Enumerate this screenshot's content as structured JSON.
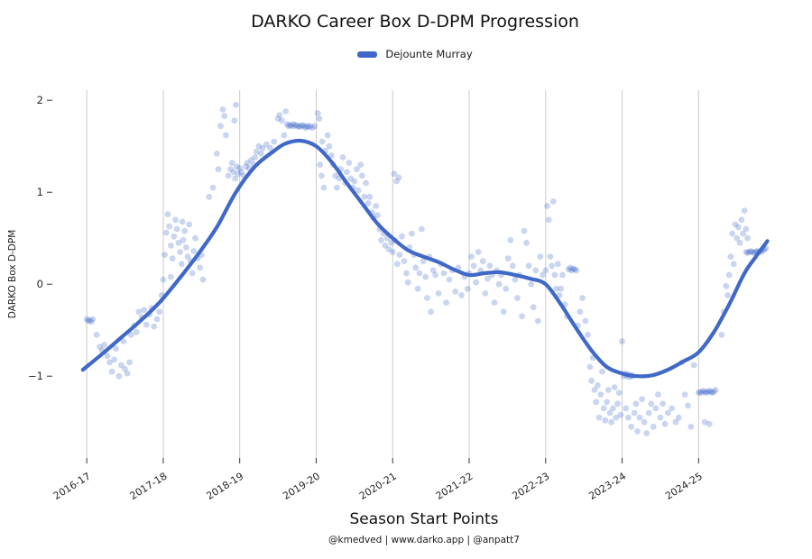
{
  "footer": {
    "credits": "@kmedved | www.darko.app | @anpatt7"
  },
  "chart_data": {
    "type": "scatter",
    "title": "DARKO Career Box D-DPM Progression",
    "xlabel": "Season Start Points",
    "ylabel": "DARKO Box D-DPM",
    "legend_entries": [
      {
        "name": "Dejounte Murray",
        "color": "#4068c8"
      }
    ],
    "legend_position": "top-center",
    "grid": "vertical-only",
    "x_unit": "seasons since 2016-17 season start (gridline index = tick index)",
    "x_ticks": [
      "2016-17",
      "2017-18",
      "2018-19",
      "2019-20",
      "2020-21",
      "2021-22",
      "2022-23",
      "2023-24",
      "2024-25"
    ],
    "y_ticks": [
      {
        "value": 2,
        "label": "2"
      },
      {
        "value": 1,
        "label": "1"
      },
      {
        "value": 0,
        "label": "0"
      },
      {
        "value": -1,
        "label": "−1"
      }
    ],
    "xlim": [
      -0.45,
      9.4
    ],
    "ylim": [
      -1.89,
      2.11
    ],
    "colors": {
      "line": "#4068c8",
      "point": "#4068c8",
      "point_opacity": 0.28,
      "grid": "#c9c9c9",
      "tick": "#333333"
    },
    "trend": [
      [
        -0.05,
        -0.93
      ],
      [
        0.2,
        -0.76
      ],
      [
        0.45,
        -0.58
      ],
      [
        0.7,
        -0.4
      ],
      [
        0.95,
        -0.2
      ],
      [
        1.2,
        0.05
      ],
      [
        1.45,
        0.32
      ],
      [
        1.7,
        0.62
      ],
      [
        1.95,
        1.0
      ],
      [
        2.2,
        1.28
      ],
      [
        2.45,
        1.45
      ],
      [
        2.6,
        1.53
      ],
      [
        2.8,
        1.56
      ],
      [
        3.0,
        1.5
      ],
      [
        3.2,
        1.33
      ],
      [
        3.4,
        1.1
      ],
      [
        3.6,
        0.88
      ],
      [
        3.8,
        0.66
      ],
      [
        4.0,
        0.5
      ],
      [
        4.2,
        0.37
      ],
      [
        4.4,
        0.3
      ],
      [
        4.6,
        0.24
      ],
      [
        4.8,
        0.16
      ],
      [
        5.0,
        0.1
      ],
      [
        5.2,
        0.12
      ],
      [
        5.4,
        0.13
      ],
      [
        5.6,
        0.1
      ],
      [
        5.8,
        0.06
      ],
      [
        6.0,
        0.0
      ],
      [
        6.2,
        -0.22
      ],
      [
        6.4,
        -0.48
      ],
      [
        6.6,
        -0.72
      ],
      [
        6.8,
        -0.9
      ],
      [
        7.0,
        -0.97
      ],
      [
        7.2,
        -1.0
      ],
      [
        7.4,
        -0.99
      ],
      [
        7.6,
        -0.93
      ],
      [
        7.8,
        -0.84
      ],
      [
        8.0,
        -0.74
      ],
      [
        8.2,
        -0.52
      ],
      [
        8.4,
        -0.22
      ],
      [
        8.6,
        0.12
      ],
      [
        8.75,
        0.3
      ],
      [
        8.9,
        0.47
      ]
    ],
    "points": [
      [
        0.0,
        -0.38
      ],
      [
        0.02,
        -0.4
      ],
      [
        0.04,
        -0.39
      ],
      [
        0.06,
        -0.41
      ],
      [
        0.08,
        -0.38
      ],
      [
        0.13,
        -0.55
      ],
      [
        0.17,
        -0.68
      ],
      [
        0.2,
        -0.72
      ],
      [
        0.23,
        -0.66
      ],
      [
        0.27,
        -0.78
      ],
      [
        0.3,
        -0.85
      ],
      [
        0.33,
        -0.95
      ],
      [
        0.36,
        -0.82
      ],
      [
        0.38,
        -0.7
      ],
      [
        0.42,
        -1.0
      ],
      [
        0.45,
        -0.88
      ],
      [
        0.48,
        -0.62
      ],
      [
        0.5,
        -0.92
      ],
      [
        0.53,
        -0.97
      ],
      [
        0.56,
        -0.85
      ],
      [
        0.58,
        -0.55
      ],
      [
        0.62,
        -0.45
      ],
      [
        0.65,
        -0.52
      ],
      [
        0.68,
        -0.3
      ],
      [
        0.72,
        -0.36
      ],
      [
        0.75,
        -0.28
      ],
      [
        0.78,
        -0.44
      ],
      [
        0.82,
        -0.33
      ],
      [
        0.85,
        -0.26
      ],
      [
        0.88,
        -0.46
      ],
      [
        0.92,
        -0.38
      ],
      [
        0.95,
        -0.3
      ],
      [
        0.98,
        -0.12
      ],
      [
        1.0,
        0.05
      ],
      [
        1.02,
        0.32
      ],
      [
        1.04,
        0.56
      ],
      [
        1.06,
        0.76
      ],
      [
        1.08,
        0.63
      ],
      [
        1.1,
        0.42
      ],
      [
        1.12,
        0.28
      ],
      [
        1.14,
        0.52
      ],
      [
        1.16,
        0.7
      ],
      [
        1.18,
        0.6
      ],
      [
        1.2,
        0.45
      ],
      [
        1.22,
        0.35
      ],
      [
        1.24,
        0.22
      ],
      [
        1.26,
        0.48
      ],
      [
        1.28,
        0.58
      ],
      [
        1.3,
        0.4
      ],
      [
        1.32,
        0.3
      ],
      [
        1.34,
        0.65
      ],
      [
        1.36,
        0.25
      ],
      [
        1.38,
        0.12
      ],
      [
        1.4,
        0.36
      ],
      [
        1.42,
        0.5
      ],
      [
        1.45,
        0.28
      ],
      [
        1.48,
        0.18
      ],
      [
        1.5,
        0.32
      ],
      [
        1.52,
        0.05
      ],
      [
        1.1,
        0.08
      ],
      [
        1.25,
        0.68
      ],
      [
        1.6,
        0.95
      ],
      [
        1.65,
        1.05
      ],
      [
        1.7,
        1.42
      ],
      [
        1.72,
        1.25
      ],
      [
        1.75,
        1.72
      ],
      [
        1.78,
        1.9
      ],
      [
        1.8,
        1.83
      ],
      [
        1.82,
        1.62
      ],
      [
        1.85,
        1.18
      ],
      [
        1.88,
        1.25
      ],
      [
        1.9,
        1.32
      ],
      [
        1.92,
        1.22
      ],
      [
        1.94,
        1.15
      ],
      [
        1.96,
        1.28
      ],
      [
        1.98,
        1.2
      ],
      [
        2.0,
        1.26
      ],
      [
        1.93,
        1.78
      ],
      [
        1.95,
        1.95
      ],
      [
        2.02,
        1.22
      ],
      [
        2.05,
        1.18
      ],
      [
        2.08,
        1.28
      ],
      [
        2.1,
        1.32
      ],
      [
        2.12,
        1.26
      ],
      [
        2.15,
        1.35
      ],
      [
        2.18,
        1.3
      ],
      [
        2.2,
        1.38
      ],
      [
        2.22,
        1.44
      ],
      [
        2.25,
        1.5
      ],
      [
        2.28,
        1.42
      ],
      [
        2.3,
        1.48
      ],
      [
        2.35,
        1.52
      ],
      [
        2.4,
        1.48
      ],
      [
        2.45,
        1.55
      ],
      [
        2.5,
        1.8
      ],
      [
        2.52,
        1.84
      ],
      [
        2.55,
        1.78
      ],
      [
        2.58,
        1.62
      ],
      [
        2.6,
        1.88
      ],
      [
        2.62,
        1.74
      ],
      [
        2.64,
        1.72
      ],
      [
        2.66,
        1.73
      ],
      [
        2.68,
        1.72
      ],
      [
        2.7,
        1.74
      ],
      [
        2.72,
        1.72
      ],
      [
        2.74,
        1.73
      ],
      [
        2.76,
        1.72
      ],
      [
        2.78,
        1.71
      ],
      [
        2.8,
        1.72
      ],
      [
        2.82,
        1.73
      ],
      [
        2.84,
        1.72
      ],
      [
        2.86,
        1.7
      ],
      [
        2.88,
        1.72
      ],
      [
        2.9,
        1.71
      ],
      [
        2.92,
        1.72
      ],
      [
        2.95,
        1.7
      ],
      [
        2.98,
        1.72
      ],
      [
        3.02,
        1.86
      ],
      [
        3.04,
        1.8
      ],
      [
        3.05,
        1.3
      ],
      [
        3.07,
        1.18
      ],
      [
        3.08,
        1.55
      ],
      [
        3.1,
        1.05
      ],
      [
        3.12,
        1.45
      ],
      [
        3.15,
        1.62
      ],
      [
        3.17,
        1.5
      ],
      [
        3.2,
        1.4
      ],
      [
        3.22,
        1.3
      ],
      [
        3.25,
        1.18
      ],
      [
        3.27,
        1.05
      ],
      [
        3.3,
        1.15
      ],
      [
        3.32,
        1.25
      ],
      [
        3.35,
        1.38
      ],
      [
        3.38,
        1.1
      ],
      [
        3.4,
        1.22
      ],
      [
        3.43,
        1.32
      ],
      [
        3.45,
        1.15
      ],
      [
        3.48,
        1.05
      ],
      [
        3.5,
        1.12
      ],
      [
        3.53,
        1.25
      ],
      [
        3.55,
        1.02
      ],
      [
        3.58,
        1.3
      ],
      [
        3.6,
        1.18
      ],
      [
        3.63,
        0.95
      ],
      [
        3.65,
        1.1
      ],
      [
        3.68,
        0.88
      ],
      [
        3.7,
        0.95
      ],
      [
        3.73,
        0.78
      ],
      [
        3.75,
        0.72
      ],
      [
        3.78,
        0.85
      ],
      [
        3.8,
        0.75
      ],
      [
        3.83,
        0.6
      ],
      [
        3.85,
        0.48
      ],
      [
        3.88,
        0.55
      ],
      [
        3.9,
        0.42
      ],
      [
        3.93,
        0.5
      ],
      [
        3.95,
        0.38
      ],
      [
        3.98,
        0.45
      ],
      [
        4.02,
        1.2
      ],
      [
        4.05,
        1.12
      ],
      [
        4.08,
        1.16
      ],
      [
        4.0,
        0.35
      ],
      [
        4.03,
        0.48
      ],
      [
        4.06,
        0.22
      ],
      [
        4.09,
        0.32
      ],
      [
        4.12,
        0.52
      ],
      [
        4.15,
        0.25
      ],
      [
        4.18,
        0.12
      ],
      [
        4.2,
        0.02
      ],
      [
        4.22,
        0.4
      ],
      [
        4.25,
        0.55
      ],
      [
        4.28,
        0.32
      ],
      [
        4.3,
        0.18
      ],
      [
        4.33,
        -0.05
      ],
      [
        4.35,
        0.12
      ],
      [
        4.38,
        0.6
      ],
      [
        4.4,
        0.25
      ],
      [
        4.43,
        0.08
      ],
      [
        4.45,
        -0.15
      ],
      [
        4.48,
        0.3
      ],
      [
        4.5,
        -0.3
      ],
      [
        4.53,
        0.15
      ],
      [
        4.56,
        0.1
      ],
      [
        4.6,
        -0.1
      ],
      [
        4.63,
        0.22
      ],
      [
        4.67,
        0.12
      ],
      [
        4.7,
        -0.2
      ],
      [
        4.74,
        0.05
      ],
      [
        4.78,
        0.15
      ],
      [
        4.82,
        -0.08
      ],
      [
        4.86,
        0.18
      ],
      [
        4.9,
        -0.12
      ],
      [
        4.94,
        0.08
      ],
      [
        4.98,
        -0.05
      ],
      [
        5.0,
        0.12
      ],
      [
        5.03,
        0.3
      ],
      [
        5.06,
        0.2
      ],
      [
        5.09,
        0.02
      ],
      [
        5.12,
        0.35
      ],
      [
        5.15,
        0.15
      ],
      [
        5.18,
        0.25
      ],
      [
        5.21,
        -0.1
      ],
      [
        5.24,
        0.06
      ],
      [
        5.27,
        0.2
      ],
      [
        5.3,
        0.1
      ],
      [
        5.33,
        -0.2
      ],
      [
        5.36,
        0.15
      ],
      [
        5.39,
        0.0
      ],
      [
        5.42,
        0.1
      ],
      [
        5.45,
        -0.3
      ],
      [
        5.48,
        -0.05
      ],
      [
        5.51,
        0.28
      ],
      [
        5.54,
        0.48
      ],
      [
        5.57,
        0.2
      ],
      [
        5.6,
        0.05
      ],
      [
        5.63,
        -0.15
      ],
      [
        5.66,
        0.1
      ],
      [
        5.69,
        -0.35
      ],
      [
        5.72,
        0.58
      ],
      [
        5.75,
        0.45
      ],
      [
        5.78,
        0.2
      ],
      [
        5.81,
        0.0
      ],
      [
        5.84,
        -0.25
      ],
      [
        5.87,
        0.15
      ],
      [
        5.9,
        -0.4
      ],
      [
        5.93,
        0.3
      ],
      [
        5.96,
        0.1
      ],
      [
        6.0,
        0.15
      ],
      [
        6.02,
        0.85
      ],
      [
        6.04,
        0.7
      ],
      [
        6.06,
        0.3
      ],
      [
        6.08,
        0.2
      ],
      [
        6.1,
        0.9
      ],
      [
        6.12,
        0.1
      ],
      [
        6.14,
        -0.05
      ],
      [
        6.16,
        0.22
      ],
      [
        6.18,
        -0.12
      ],
      [
        6.2,
        -0.05
      ],
      [
        6.22,
        0.1
      ],
      [
        6.25,
        -0.22
      ],
      [
        6.28,
        -0.35
      ],
      [
        6.3,
        0.16
      ],
      [
        6.32,
        0.18
      ],
      [
        6.34,
        0.15
      ],
      [
        6.36,
        0.17
      ],
      [
        6.38,
        0.16
      ],
      [
        6.4,
        0.15
      ],
      [
        6.42,
        -0.45
      ],
      [
        6.45,
        -0.3
      ],
      [
        6.48,
        -0.15
      ],
      [
        6.52,
        -0.4
      ],
      [
        6.55,
        -0.55
      ],
      [
        6.58,
        -0.9
      ],
      [
        6.6,
        -1.05
      ],
      [
        6.62,
        -0.8
      ],
      [
        6.64,
        -1.15
      ],
      [
        6.66,
        -1.28
      ],
      [
        6.68,
        -1.1
      ],
      [
        6.7,
        -1.45
      ],
      [
        6.72,
        -1.2
      ],
      [
        6.74,
        -0.95
      ],
      [
        6.76,
        -1.35
      ],
      [
        6.78,
        -1.48
      ],
      [
        6.8,
        -1.28
      ],
      [
        6.82,
        -1.15
      ],
      [
        6.84,
        -1.4
      ],
      [
        6.86,
        -1.5
      ],
      [
        6.88,
        -1.35
      ],
      [
        6.9,
        -1.12
      ],
      [
        6.92,
        -1.45
      ],
      [
        6.94,
        -1.3
      ],
      [
        6.96,
        -1.18
      ],
      [
        6.98,
        -1.42
      ],
      [
        7.0,
        -0.62
      ],
      [
        7.02,
        -1.0
      ],
      [
        7.04,
        -0.97
      ],
      [
        7.06,
        -1.0
      ],
      [
        7.08,
        -0.98
      ],
      [
        7.1,
        -1.01
      ],
      [
        7.12,
        -0.99
      ],
      [
        7.14,
        -1.0
      ],
      [
        7.05,
        -1.35
      ],
      [
        7.08,
        -1.45
      ],
      [
        7.12,
        -1.55
      ],
      [
        7.16,
        -1.4
      ],
      [
        7.18,
        -1.3
      ],
      [
        7.2,
        -1.6
      ],
      [
        7.23,
        -1.45
      ],
      [
        7.26,
        -1.25
      ],
      [
        7.29,
        -1.5
      ],
      [
        7.32,
        -1.62
      ],
      [
        7.35,
        -1.4
      ],
      [
        7.38,
        -1.3
      ],
      [
        7.41,
        -1.55
      ],
      [
        7.44,
        -1.35
      ],
      [
        7.47,
        -1.2
      ],
      [
        7.5,
        -1.45
      ],
      [
        7.53,
        -1.3
      ],
      [
        7.56,
        -1.52
      ],
      [
        7.6,
        -1.4
      ],
      [
        7.65,
        -1.35
      ],
      [
        7.7,
        -1.5
      ],
      [
        7.74,
        -1.45
      ],
      [
        7.78,
        -0.85
      ],
      [
        7.82,
        -1.2
      ],
      [
        7.86,
        -1.32
      ],
      [
        7.9,
        -1.55
      ],
      [
        7.94,
        -0.88
      ],
      [
        8.0,
        -1.18
      ],
      [
        8.02,
        -1.17
      ],
      [
        8.04,
        -1.18
      ],
      [
        8.06,
        -1.16
      ],
      [
        8.08,
        -1.17
      ],
      [
        8.1,
        -1.18
      ],
      [
        8.12,
        -1.17
      ],
      [
        8.14,
        -1.16
      ],
      [
        8.16,
        -1.17
      ],
      [
        8.18,
        -1.18
      ],
      [
        8.2,
        -1.17
      ],
      [
        8.22,
        -1.15
      ],
      [
        8.08,
        -1.5
      ],
      [
        8.14,
        -1.52
      ],
      [
        8.3,
        -0.55
      ],
      [
        8.33,
        -0.3
      ],
      [
        8.36,
        -0.02
      ],
      [
        8.38,
        -0.12
      ],
      [
        8.4,
        0.1
      ],
      [
        8.42,
        0.3
      ],
      [
        8.44,
        0.55
      ],
      [
        8.46,
        0.22
      ],
      [
        8.48,
        0.65
      ],
      [
        8.5,
        0.5
      ],
      [
        8.52,
        0.62
      ],
      [
        8.54,
        0.45
      ],
      [
        8.56,
        0.7
      ],
      [
        8.58,
        0.55
      ],
      [
        8.6,
        0.8
      ],
      [
        8.62,
        0.6
      ],
      [
        8.64,
        0.5
      ],
      [
        8.62,
        0.35
      ],
      [
        8.64,
        0.34
      ],
      [
        8.66,
        0.35
      ],
      [
        8.68,
        0.36
      ],
      [
        8.7,
        0.35
      ],
      [
        8.72,
        0.34
      ],
      [
        8.74,
        0.35
      ],
      [
        8.76,
        0.36
      ],
      [
        8.78,
        0.35
      ],
      [
        8.8,
        0.36
      ],
      [
        8.82,
        0.35
      ],
      [
        8.84,
        0.37
      ],
      [
        8.86,
        0.38
      ],
      [
        8.88,
        0.39
      ]
    ]
  }
}
